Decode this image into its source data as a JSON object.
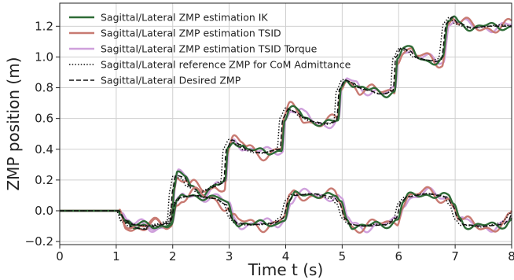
{
  "chart_data": {
    "type": "line",
    "xlabel": "Time t (s)",
    "ylabel": "ZMP position (m)",
    "xlim": [
      0,
      8
    ],
    "ylim": [
      -0.22,
      1.35
    ],
    "xticks": [
      0,
      1,
      2,
      3,
      4,
      5,
      6,
      7,
      8
    ],
    "yticks": [
      -0.2,
      0.0,
      0.2,
      0.4,
      0.6,
      0.8,
      1.0,
      1.2
    ],
    "ytick_labels": [
      "−0.2",
      "0.0",
      "0.2",
      "0.4",
      "0.6",
      "0.8",
      "1.0",
      "1.2"
    ],
    "grid": true,
    "legend_position": "top-left",
    "series": [
      {
        "name": "Sagittal/Lateral ZMP estimation IK",
        "color": "#2e6b36",
        "style": "solid"
      },
      {
        "name": "Sagittal/Lateral ZMP estimation TSID",
        "color": "#c87a72",
        "style": "solid"
      },
      {
        "name": "Sagittal/Lateral ZMP estimation TSID Torque",
        "color": "#cfa0dc",
        "style": "solid"
      },
      {
        "name": "Sagittal/Lateral reference ZMP for CoM Admittance",
        "color": "#111111",
        "style": "dotted"
      },
      {
        "name": "Sagittal/Lateral Desired ZMP",
        "color": "#111111",
        "style": "dashed"
      }
    ],
    "sagittal_desired": {
      "x": [
        0,
        1.05,
        1.15,
        1.3,
        1.5,
        1.75,
        1.95,
        2.0,
        2.05,
        2.2,
        2.3,
        2.5,
        2.65,
        2.75,
        2.9,
        2.95,
        3.05,
        3.2,
        3.3,
        3.5,
        3.65,
        3.75,
        3.9,
        3.95,
        4.05,
        4.2,
        4.3,
        4.5,
        4.65,
        4.75,
        4.9,
        4.95,
        5.05,
        5.2,
        5.3,
        5.5,
        5.65,
        5.75,
        5.9,
        5.95,
        6.05,
        6.2,
        6.3,
        6.5,
        6.65,
        6.75,
        6.85,
        6.95,
        7.05,
        7.3,
        7.6,
        8
      ],
      "y": [
        0,
        0.0,
        -0.07,
        -0.11,
        -0.12,
        -0.1,
        -0.07,
        0.14,
        0.23,
        0.22,
        0.16,
        0.12,
        0.14,
        0.16,
        0.18,
        0.4,
        0.46,
        0.43,
        0.4,
        0.38,
        0.38,
        0.39,
        0.4,
        0.6,
        0.66,
        0.64,
        0.61,
        0.58,
        0.57,
        0.57,
        0.58,
        0.79,
        0.85,
        0.83,
        0.8,
        0.78,
        0.76,
        0.76,
        0.78,
        1.0,
        1.06,
        1.04,
        1.0,
        0.98,
        0.97,
        0.98,
        1.22,
        1.26,
        1.22,
        1.19,
        1.2,
        1.2
      ]
    },
    "lateral_desired": {
      "x": [
        0,
        1.05,
        1.15,
        1.3,
        1.6,
        1.85,
        1.95,
        2.05,
        2.15,
        2.4,
        2.75,
        2.95,
        3.05,
        3.15,
        3.4,
        3.8,
        3.95,
        4.05,
        4.15,
        4.5,
        4.85,
        4.95,
        5.05,
        5.15,
        5.4,
        5.8,
        5.95,
        6.05,
        6.15,
        6.5,
        6.85,
        6.95,
        7.05,
        7.15,
        7.5,
        7.85,
        7.95,
        8
      ],
      "y": [
        0,
        0.0,
        -0.06,
        -0.09,
        -0.1,
        -0.09,
        -0.08,
        0.05,
        0.09,
        0.1,
        0.08,
        0.04,
        -0.05,
        -0.08,
        -0.09,
        -0.08,
        -0.05,
        0.06,
        0.1,
        0.11,
        0.09,
        0.05,
        -0.05,
        -0.09,
        -0.1,
        -0.09,
        -0.05,
        0.06,
        0.09,
        0.11,
        0.09,
        0.04,
        -0.05,
        -0.09,
        -0.1,
        -0.09,
        -0.06,
        -0.02
      ]
    }
  }
}
